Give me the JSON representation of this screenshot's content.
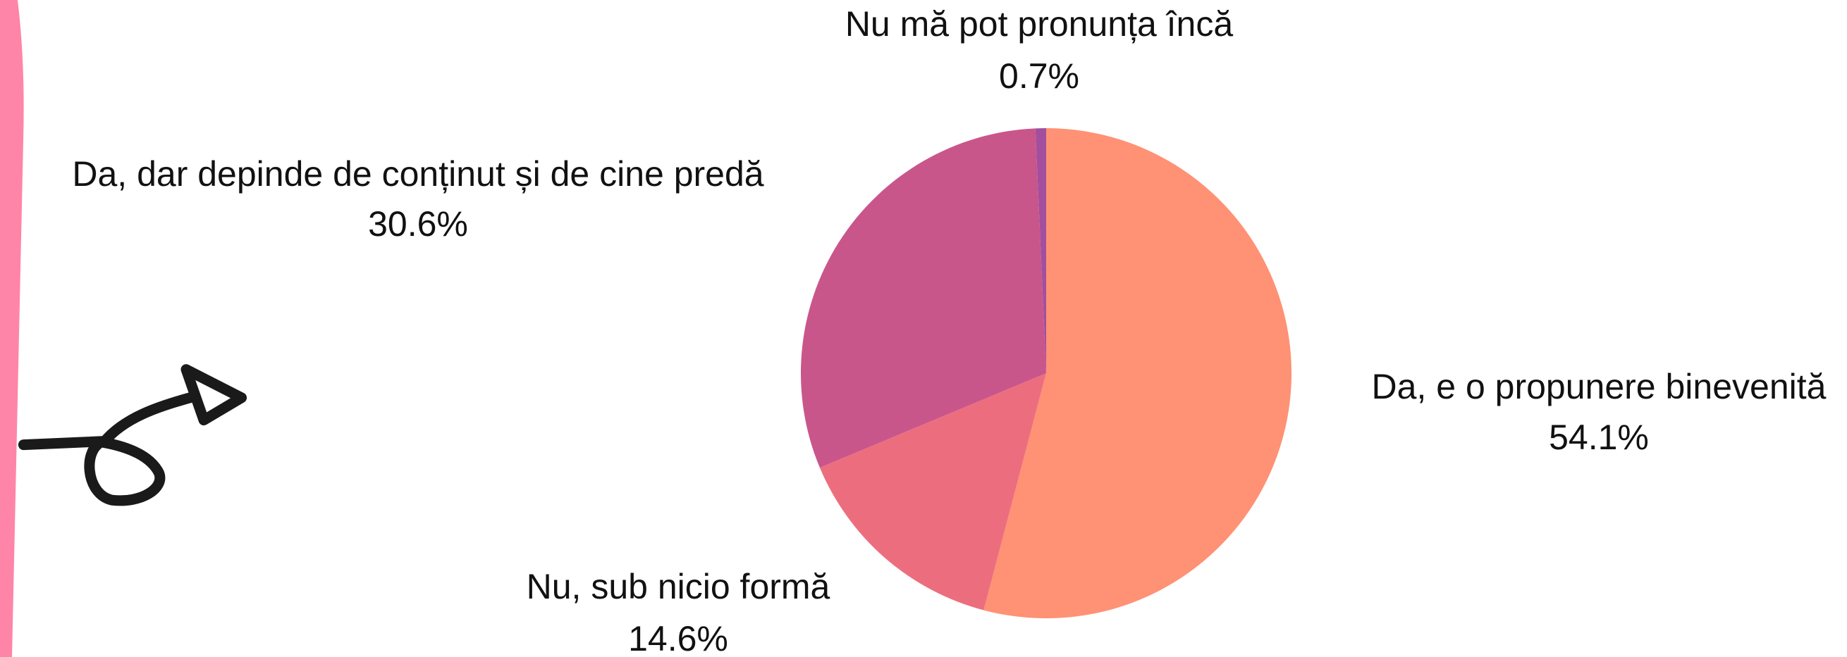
{
  "chart_data": {
    "type": "pie",
    "categories": [
      "Da, e o propunere binevenită",
      "Nu, sub nicio formă",
      "Da, dar depinde de conținut și de cine predă",
      "Nu mă pot pronunța încă"
    ],
    "values": [
      54.1,
      14.6,
      30.6,
      0.7
    ],
    "value_labels": [
      "54.1%",
      "14.6%",
      "30.6%",
      "0.7%"
    ],
    "colors": [
      "#ff9175",
      "#ec6e7e",
      "#c9568a",
      "#a34f9e"
    ]
  }
}
